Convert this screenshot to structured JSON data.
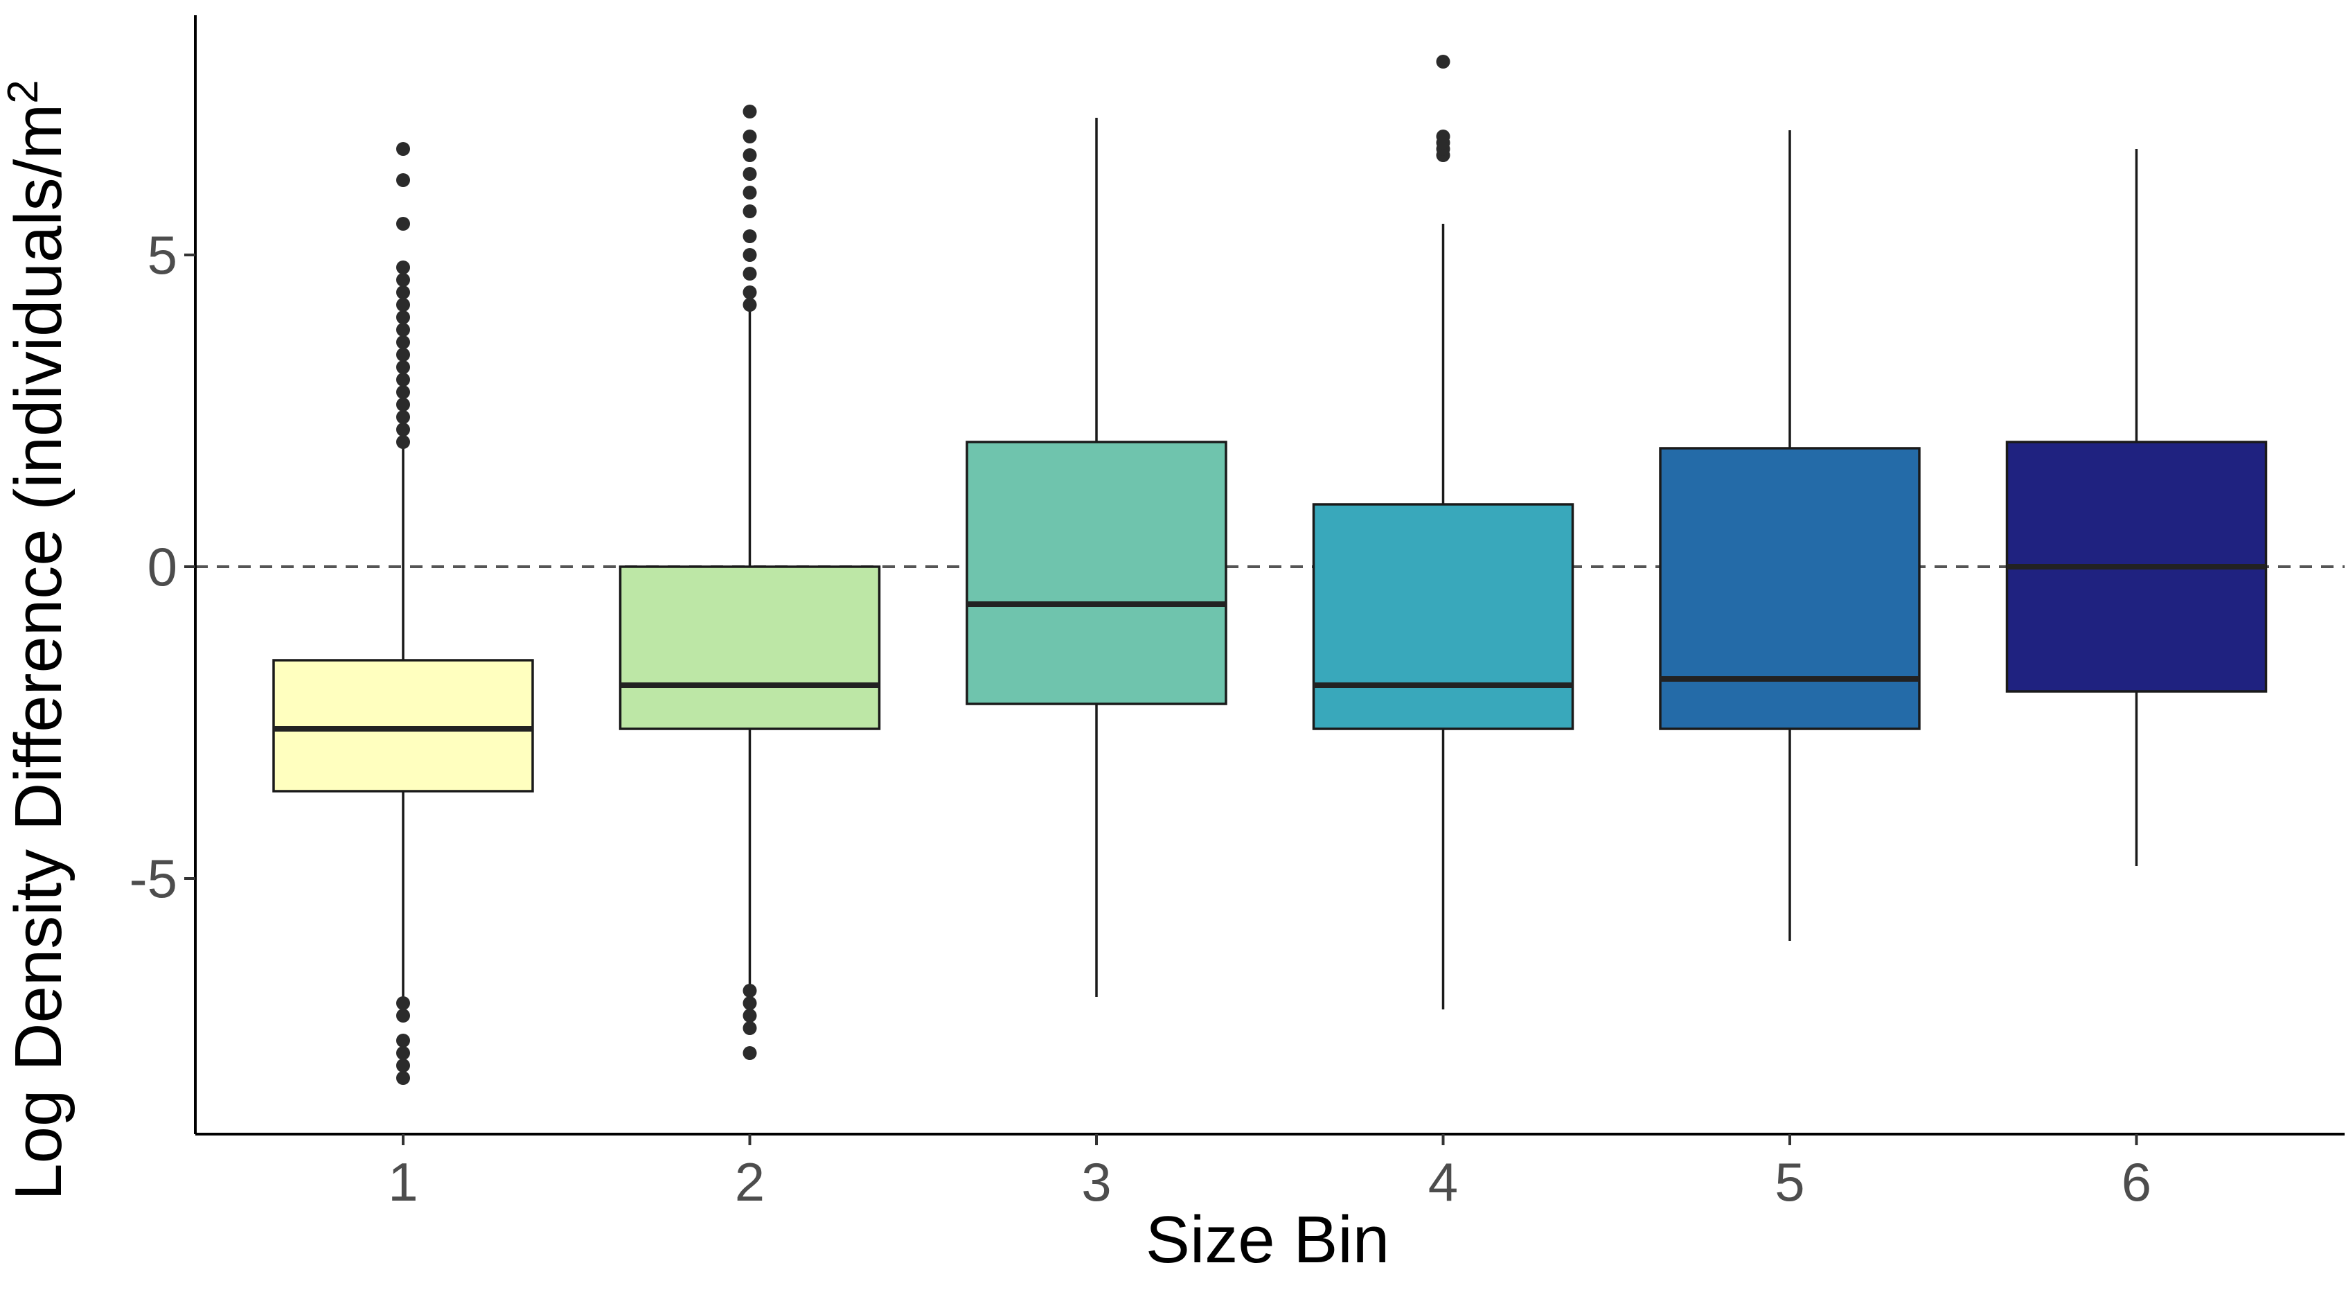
{
  "chart_data": {
    "type": "box",
    "title": "",
    "xlabel": "Size Bin",
    "ylabel": "Log Density Difference (individuals/m²)",
    "ylabel_main": "Log Density Difference ",
    "ylabel_paren": "(individuals/m",
    "ylabel_sup": "2",
    "categories": [
      "1",
      "2",
      "3",
      "4",
      "5",
      "6"
    ],
    "y_ticks": [
      -5,
      0,
      5
    ],
    "y_tick_labels": [
      "-5",
      "0",
      "5"
    ],
    "ylim": [
      -9.1,
      8.8
    ],
    "reference_line": {
      "y": 0,
      "style": "dashed"
    },
    "grid": false,
    "legend": "none",
    "boxes": [
      {
        "category": "1",
        "color": "#FFFFBF",
        "whisker_low": -6.9,
        "q1": -3.6,
        "median": -2.6,
        "q3": -1.5,
        "whisker_high": 1.9,
        "outliers": [
          2.0,
          2.2,
          2.4,
          2.6,
          2.8,
          3.0,
          3.2,
          3.4,
          3.6,
          3.8,
          4.0,
          4.2,
          4.4,
          4.6,
          4.8,
          5.5,
          6.2,
          6.7,
          -7.0,
          -7.2,
          -7.6,
          -7.8,
          -8.0,
          -8.2
        ]
      },
      {
        "category": "2",
        "color": "#BDE7A6",
        "whisker_low": -6.7,
        "q1": -2.6,
        "median": -1.9,
        "q3": 0.0,
        "whisker_high": 4.1,
        "outliers": [
          4.2,
          4.4,
          4.7,
          5.0,
          5.3,
          5.7,
          6.0,
          6.3,
          6.6,
          6.9,
          7.3,
          -6.8,
          -7.0,
          -7.2,
          -7.4,
          -7.8
        ]
      },
      {
        "category": "3",
        "color": "#6FC4AD",
        "whisker_low": -6.9,
        "q1": -2.2,
        "median": -0.6,
        "q3": 2.0,
        "whisker_high": 7.2,
        "outliers": []
      },
      {
        "category": "4",
        "color": "#39A8BB",
        "whisker_low": -7.1,
        "q1": -2.6,
        "median": -1.9,
        "q3": 1.0,
        "whisker_high": 5.5,
        "outliers": [
          6.6,
          6.7,
          6.8,
          6.9,
          8.1
        ]
      },
      {
        "category": "5",
        "color": "#246BA8",
        "whisker_low": -6.0,
        "q1": -2.6,
        "median": -1.8,
        "q3": 1.9,
        "whisker_high": 7.0,
        "outliers": []
      },
      {
        "category": "6",
        "color": "#1F2280",
        "whisker_low": -4.8,
        "q1": -2.0,
        "median": 0.0,
        "q3": 2.0,
        "whisker_high": 6.7,
        "outliers": []
      }
    ]
  }
}
